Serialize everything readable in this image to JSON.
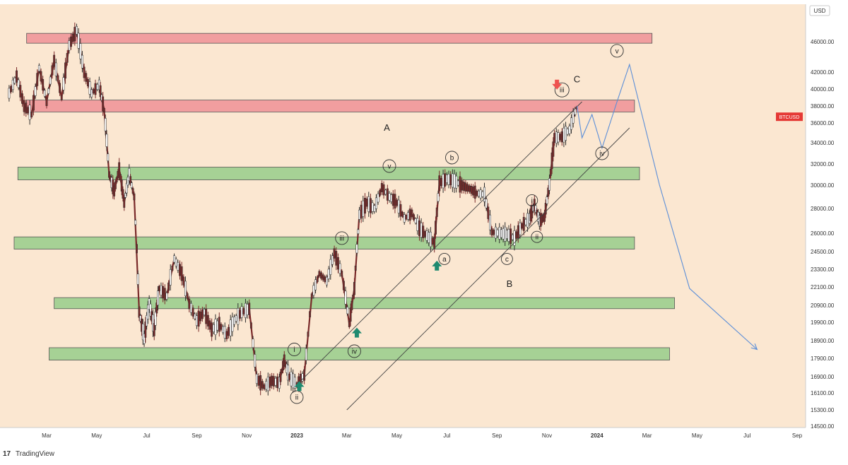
{
  "chart_data": {
    "type": "candlestick",
    "symbol": "BTCUSD",
    "currency": "USD",
    "yticks": [
      14500,
      15300,
      16100,
      16900,
      17900,
      18900,
      19900,
      20900,
      22100,
      23300,
      24500,
      26000,
      28000,
      30000,
      32000,
      34000,
      36000,
      38000,
      40000,
      42000,
      46000
    ],
    "ylim": [
      14400,
      48000
    ],
    "xticks": [
      {
        "label": "Mar",
        "t": 1.5,
        "bold": false
      },
      {
        "label": "May",
        "t": 3.5,
        "bold": false
      },
      {
        "label": "Jul",
        "t": 5.5,
        "bold": false
      },
      {
        "label": "Sep",
        "t": 7.5,
        "bold": false
      },
      {
        "label": "Nov",
        "t": 9.5,
        "bold": false
      },
      {
        "label": "2023",
        "t": 11.5,
        "bold": true
      },
      {
        "label": "Mar",
        "t": 13.5,
        "bold": false
      },
      {
        "label": "May",
        "t": 15.5,
        "bold": false
      },
      {
        "label": "Jul",
        "t": 17.5,
        "bold": false
      },
      {
        "label": "Sep",
        "t": 19.5,
        "bold": false
      },
      {
        "label": "Nov",
        "t": 21.5,
        "bold": false
      },
      {
        "label": "2024",
        "t": 23.5,
        "bold": true
      },
      {
        "label": "Mar",
        "t": 25.5,
        "bold": false
      },
      {
        "label": "May",
        "t": 27.5,
        "bold": false
      },
      {
        "label": "Jul",
        "t": 29.5,
        "bold": false
      },
      {
        "label": "Sep",
        "t": 31.5,
        "bold": false
      }
    ],
    "xlim": [
      0,
      32.5
    ],
    "price_path": [
      [
        0.0,
        39500
      ],
      [
        0.3,
        41500
      ],
      [
        0.6,
        38000
      ],
      [
        0.9,
        37000
      ],
      [
        1.2,
        42500
      ],
      [
        1.5,
        38500
      ],
      [
        1.8,
        43500
      ],
      [
        2.1,
        39000
      ],
      [
        2.4,
        45500
      ],
      [
        2.7,
        47500
      ],
      [
        3.0,
        42000
      ],
      [
        3.3,
        39500
      ],
      [
        3.6,
        40500
      ],
      [
        3.8,
        37500
      ],
      [
        4.0,
        31000
      ],
      [
        4.2,
        29500
      ],
      [
        4.4,
        31500
      ],
      [
        4.6,
        28500
      ],
      [
        4.8,
        31000
      ],
      [
        5.0,
        29000
      ],
      [
        5.2,
        20500
      ],
      [
        5.4,
        19000
      ],
      [
        5.6,
        21000
      ],
      [
        5.8,
        19500
      ],
      [
        6.0,
        22000
      ],
      [
        6.3,
        21500
      ],
      [
        6.6,
        24000
      ],
      [
        6.9,
        23000
      ],
      [
        7.2,
        21000
      ],
      [
        7.5,
        20000
      ],
      [
        7.8,
        20500
      ],
      [
        8.1,
        19500
      ],
      [
        8.4,
        19800
      ],
      [
        8.7,
        19200
      ],
      [
        9.0,
        20000
      ],
      [
        9.3,
        20500
      ],
      [
        9.6,
        20700
      ],
      [
        9.9,
        16800
      ],
      [
        10.2,
        16400
      ],
      [
        10.5,
        16700
      ],
      [
        10.8,
        16600
      ],
      [
        11.0,
        17800
      ],
      [
        11.2,
        16900
      ],
      [
        11.5,
        16500
      ],
      [
        11.8,
        17000
      ],
      [
        12.1,
        21500
      ],
      [
        12.4,
        23000
      ],
      [
        12.7,
        22500
      ],
      [
        13.0,
        24400
      ],
      [
        13.3,
        23000
      ],
      [
        13.6,
        19800
      ],
      [
        13.8,
        22000
      ],
      [
        14.0,
        27500
      ],
      [
        14.3,
        28500
      ],
      [
        14.6,
        28000
      ],
      [
        14.9,
        29800
      ],
      [
        15.2,
        29000
      ],
      [
        15.5,
        28500
      ],
      [
        15.8,
        27200
      ],
      [
        16.1,
        27600
      ],
      [
        16.4,
        26400
      ],
      [
        16.7,
        25800
      ],
      [
        17.0,
        25200
      ],
      [
        17.2,
        30200
      ],
      [
        17.5,
        30600
      ],
      [
        17.8,
        30400
      ],
      [
        18.1,
        30000
      ],
      [
        18.4,
        29700
      ],
      [
        18.7,
        29300
      ],
      [
        19.0,
        29200
      ],
      [
        19.3,
        26100
      ],
      [
        19.6,
        26000
      ],
      [
        19.9,
        25900
      ],
      [
        20.2,
        25600
      ],
      [
        20.5,
        26600
      ],
      [
        20.8,
        27200
      ],
      [
        21.0,
        28300
      ],
      [
        21.2,
        27000
      ],
      [
        21.4,
        27300
      ],
      [
        21.6,
        30100
      ],
      [
        21.8,
        34500
      ],
      [
        22.1,
        34600
      ],
      [
        22.4,
        35300
      ],
      [
        22.7,
        38000
      ]
    ],
    "resistance_zones": [
      {
        "name": "zone-46000",
        "ylow": 45800,
        "yhigh": 47100,
        "t0": 0.7,
        "t1": 25.7
      },
      {
        "name": "zone-38000",
        "ylow": 37300,
        "yhigh": 38700,
        "t0": 0.7,
        "t1": 25.0
      }
    ],
    "support_zones": [
      {
        "name": "zone-31000",
        "ylow": 30500,
        "yhigh": 31700,
        "t0": 0.35,
        "t1": 25.2
      },
      {
        "name": "zone-25000",
        "ylow": 24700,
        "yhigh": 25700,
        "t0": 0.2,
        "t1": 25.0
      },
      {
        "name": "zone-21000",
        "ylow": 20700,
        "yhigh": 21400,
        "t0": 1.8,
        "t1": 26.6
      },
      {
        "name": "zone-18000",
        "ylow": 17800,
        "yhigh": 18500,
        "t0": 1.6,
        "t1": 26.4
      }
    ],
    "channel_lines": [
      {
        "t0": 11.5,
        "p0": 16500,
        "t1": 22.9,
        "p1": 38500
      },
      {
        "t0": 13.5,
        "p0": 15300,
        "t1": 24.8,
        "p1": 35500
      }
    ],
    "projection_path": [
      [
        22.7,
        38000
      ],
      [
        22.9,
        34500
      ],
      [
        23.3,
        37000
      ],
      [
        23.7,
        33500
      ],
      [
        24.3,
        38500
      ],
      [
        24.8,
        43000
      ],
      [
        26.0,
        30000
      ],
      [
        27.2,
        22000
      ],
      [
        29.9,
        18400
      ]
    ],
    "wave_labels": [
      {
        "text": "i",
        "t": 11.4,
        "p": 18400,
        "size": 9
      },
      {
        "text": "ii",
        "t": 11.5,
        "p": 15900,
        "size": 9
      },
      {
        "text": "iii",
        "t": 13.3,
        "p": 25600,
        "size": 9
      },
      {
        "text": "iv",
        "t": 13.8,
        "p": 18300,
        "size": 9
      },
      {
        "text": "v",
        "t": 15.2,
        "p": 31800,
        "size": 9
      },
      {
        "text": "a",
        "t": 17.4,
        "p": 24000,
        "size": 8
      },
      {
        "text": "b",
        "t": 17.7,
        "p": 32600,
        "size": 9
      },
      {
        "text": "c",
        "t": 19.9,
        "p": 24000,
        "size": 8
      },
      {
        "text": "i",
        "t": 20.9,
        "p": 28700,
        "size": 8
      },
      {
        "text": "ii",
        "t": 21.1,
        "p": 25700,
        "size": 8
      },
      {
        "text": "iii",
        "t": 22.1,
        "p": 39900,
        "size": 10
      },
      {
        "text": "iv",
        "t": 23.7,
        "p": 33000,
        "size": 9
      },
      {
        "text": "v",
        "t": 24.3,
        "p": 44800,
        "size": 9
      }
    ],
    "big_labels": [
      {
        "text": "A",
        "t": 15.1,
        "p": 35200
      },
      {
        "text": "B",
        "t": 20.0,
        "p": 22100
      },
      {
        "text": "C",
        "t": 22.7,
        "p": 40800
      }
    ],
    "arrows": [
      {
        "dir": "up",
        "color": "#1f8a70",
        "t": 11.6,
        "p": 16400
      },
      {
        "dir": "up",
        "color": "#1f8a70",
        "t": 13.9,
        "p": 19300
      },
      {
        "dir": "up",
        "color": "#1f8a70",
        "t": 17.1,
        "p": 23500
      },
      {
        "dir": "down",
        "color": "#ef5350",
        "t": 21.9,
        "p": 40600
      }
    ],
    "current_price_label": "BTCUSD",
    "current_price": 36400
  },
  "colors": {
    "background": "#fbe7d1",
    "resistance_fill": "#f19e9f",
    "support_fill": "#a6d195",
    "zone_stroke": "#555555",
    "candle_line": "#7a2a2a",
    "projection": "#5b8ed8",
    "channel": "#444444",
    "price_tag": "#e53935"
  },
  "branding": {
    "logo_text": "TradingView"
  }
}
